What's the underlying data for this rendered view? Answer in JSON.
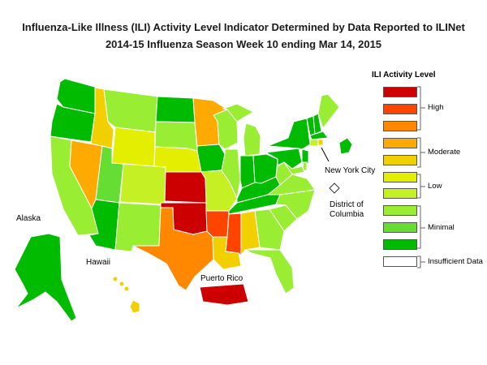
{
  "title_line1": "Influenza-Like Illness (ILI) Activity Level Indicator Determined by Data Reported to ILINet",
  "title_line2": "2014-15  Influenza Season Week  10 ending Mar 14, 2015",
  "labels": {
    "alaska": "Alaska",
    "hawaii": "Hawaii",
    "puerto_rico": "Puerto Rico",
    "nyc": "New York City",
    "dc_line1": "District of",
    "dc_line2": "Columbia"
  },
  "legend": {
    "title": "ILI Activity Level",
    "levels": [
      {
        "level": 10,
        "color": "#cc0000"
      },
      {
        "level": 9,
        "color": "#ff4400"
      },
      {
        "level": 8,
        "color": "#ff8800"
      },
      {
        "level": 7,
        "color": "#ffaa00"
      },
      {
        "level": 6,
        "color": "#f2d000"
      },
      {
        "level": 5,
        "color": "#e4ee00"
      },
      {
        "level": 4,
        "color": "#c4f024"
      },
      {
        "level": 3,
        "color": "#99ee33"
      },
      {
        "level": 2,
        "color": "#66dd33"
      },
      {
        "level": 1,
        "color": "#00bb00"
      },
      {
        "level": 0,
        "color": "#ffffff"
      }
    ],
    "groups": {
      "high": "High",
      "moderate": "Moderate",
      "low": "Low",
      "minimal": "Minimal",
      "insufficient": "Insufficient Data"
    }
  },
  "state_levels": {
    "WA": 1,
    "OR": 1,
    "CA": 3,
    "NV": 7,
    "ID": 6,
    "MT": 3,
    "WY": 5,
    "UT": 2,
    "CO": 4,
    "AZ": 1,
    "NM": 3,
    "ND": 1,
    "SD": 3,
    "NE": 5,
    "KS": 10,
    "OK": 10,
    "TX": 8,
    "MN": 7,
    "IA": 1,
    "MO": 4,
    "AR": 9,
    "LA": 6,
    "WI": 3,
    "IL": 3,
    "MI": 3,
    "IN": 1,
    "OH": 1,
    "KY": 1,
    "TN": 1,
    "MS": 9,
    "AL": 6,
    "GA": 3,
    "FL": 3,
    "SC": 3,
    "NC": 3,
    "VA": 3,
    "WV": 3,
    "PA": 1,
    "NY": 1,
    "ME": 3,
    "VT": 1,
    "NH": 1,
    "MA": 1,
    "CT": 4,
    "RI": 6,
    "NJ": 1,
    "DE": 3,
    "MD": 3,
    "DC": 0,
    "NYC": 1,
    "AK": 1,
    "HI": 6,
    "PR": 10
  }
}
